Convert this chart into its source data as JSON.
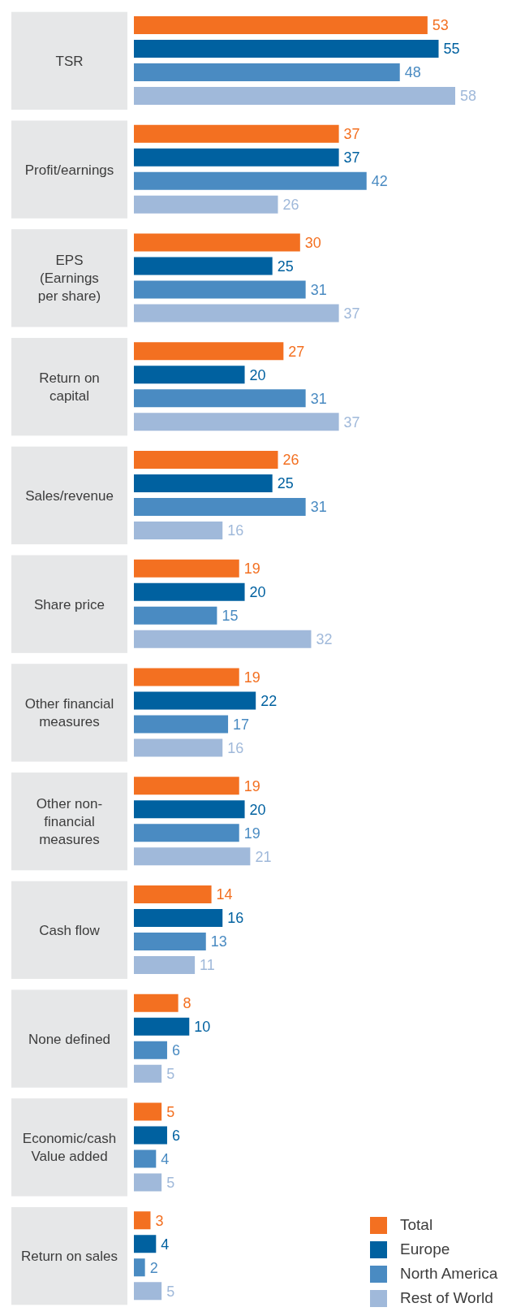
{
  "chart_data": {
    "type": "bar",
    "orientation": "horizontal",
    "categories": [
      "TSR",
      "Profit/earnings",
      "EPS\n(Earnings\nper share)",
      "Return on\ncapital",
      "Sales/revenue",
      "Share price",
      "Other financial\nmeasures",
      "Other non-\nfinancial\nmeasures",
      "Cash flow",
      "None defined",
      "Economic/cash\nValue added",
      "Return on sales"
    ],
    "series": [
      {
        "name": "Total",
        "color": "#f37021",
        "values": [
          53,
          37,
          30,
          27,
          26,
          19,
          19,
          19,
          14,
          8,
          5,
          3
        ]
      },
      {
        "name": "Europe",
        "color": "#0061a0",
        "values": [
          55,
          37,
          25,
          20,
          25,
          20,
          22,
          20,
          16,
          10,
          6,
          4
        ]
      },
      {
        "name": "North America",
        "color": "#4a8bc2",
        "values": [
          48,
          42,
          31,
          31,
          31,
          15,
          17,
          19,
          13,
          6,
          4,
          2
        ]
      },
      {
        "name": "Rest of World",
        "color": "#a0b9da",
        "values": [
          58,
          26,
          37,
          37,
          16,
          32,
          16,
          21,
          11,
          5,
          5,
          5
        ]
      }
    ],
    "data_labels": true,
    "legend": "bottom right",
    "grid": false
  }
}
